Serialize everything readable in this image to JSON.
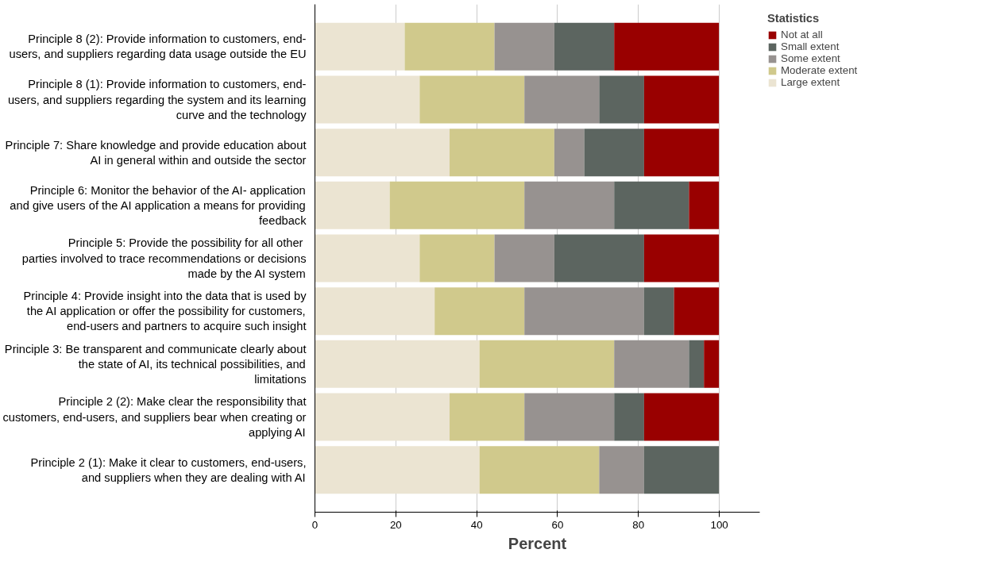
{
  "chart_data": {
    "type": "bar",
    "orientation": "horizontal",
    "stacked": true,
    "categories": [
      "Principle 8 (2): Provide information to customers, end-users, and suppliers regarding data usage outside the EU",
      "Principle 8 (1): Provide information to customers, end-users, and suppliers regarding the system and its learning curve and the technology",
      "Principle 7: Share knowledge and provide education about AI in general within and outside the sector",
      "Principle 6: Monitor the behavior of the AI- application and give users of the AI application a means for providing feedback",
      "Principle 5:  Provide the possibility for all other parties involved to trace recommendations or decisions made by the AI system",
      "Principle 4: Provide insight into the data that is used by the AI application or offer the possibility for customers, end-users and partners to acquire such insight",
      "Principle 3: Be transparent and communicate clearly about the state of AI, its technical possibilities, and limitations",
      "Principle 2 (2): Make clear the responsibility that customers, end-users, and suppliers bear when creating or applying AI",
      "Principle 2 (1): Make it clear to customers, end-users, and suppliers when they are dealing with AI"
    ],
    "series": [
      {
        "name": "Large extent",
        "color": "#ebe4d2",
        "values": [
          22.2,
          25.9,
          33.3,
          18.5,
          25.9,
          29.6,
          40.7,
          33.3,
          40.7
        ]
      },
      {
        "name": "Moderate extent",
        "color": "#d0c98c",
        "values": [
          22.2,
          25.9,
          25.9,
          33.3,
          18.5,
          22.2,
          33.3,
          18.5,
          29.6
        ]
      },
      {
        "name": "Some extent",
        "color": "#979290",
        "values": [
          14.8,
          18.5,
          7.4,
          22.2,
          14.8,
          29.6,
          18.5,
          22.2,
          11.1
        ]
      },
      {
        "name": "Small extent",
        "color": "#5c6560",
        "values": [
          14.8,
          11.1,
          14.8,
          18.5,
          22.2,
          7.4,
          3.7,
          7.4,
          18.5
        ]
      },
      {
        "name": "Not at all",
        "color": "#990000",
        "values": [
          25.9,
          18.5,
          18.5,
          7.4,
          18.5,
          11.1,
          3.7,
          18.5,
          0
        ]
      }
    ],
    "xlabel": "Percent",
    "legend_title": "Statistics",
    "legend": "top right",
    "xlim": [
      0,
      110
    ],
    "xticks": [
      0,
      20,
      40,
      60,
      80,
      100
    ],
    "grid": "x"
  }
}
